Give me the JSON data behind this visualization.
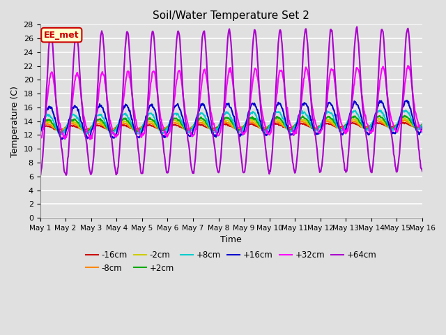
{
  "title": "Soil/Water Temperature Set 2",
  "xlabel": "Time",
  "ylabel": "Temperature (C)",
  "xlim": [
    0,
    15
  ],
  "ylim": [
    0,
    28
  ],
  "yticks": [
    0,
    2,
    4,
    6,
    8,
    10,
    12,
    14,
    16,
    18,
    20,
    22,
    24,
    26,
    28
  ],
  "xtick_labels": [
    "May 1",
    "May 2",
    "May 3",
    "May 4",
    "May 5",
    "May 6",
    "May 7",
    "May 8",
    "May 9",
    "May 10",
    "May 11",
    "May 12",
    "May 13",
    "May 14",
    "May 15",
    "May 16"
  ],
  "background_color": "#e0e0e0",
  "plot_bg_color": "#e0e0e0",
  "grid_color": "#ffffff",
  "annotation_text": "EE_met",
  "annotation_bg": "#ffffcc",
  "annotation_border": "#cc0000",
  "annotation_text_color": "#cc0000",
  "series_order": [
    "-16cm",
    "-8cm",
    "-2cm",
    "+2cm",
    "+8cm",
    "+16cm",
    "+32cm",
    "+64cm"
  ],
  "series": {
    "-16cm": {
      "color": "#cc0000",
      "lw": 1.5
    },
    "-8cm": {
      "color": "#ff8800",
      "lw": 1.5
    },
    "-2cm": {
      "color": "#cccc00",
      "lw": 1.5
    },
    "+2cm": {
      "color": "#00aa00",
      "lw": 1.5
    },
    "+8cm": {
      "color": "#00cccc",
      "lw": 1.5
    },
    "+16cm": {
      "color": "#0000cc",
      "lw": 1.5
    },
    "+32cm": {
      "color": "#ff00ff",
      "lw": 1.5
    },
    "+64cm": {
      "color": "#aa00cc",
      "lw": 1.5
    }
  },
  "legend_ncol": 6,
  "figsize": [
    6.4,
    4.8
  ],
  "dpi": 100
}
